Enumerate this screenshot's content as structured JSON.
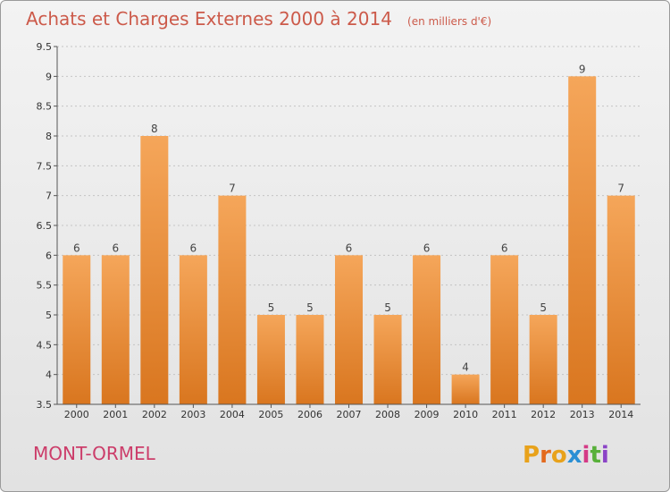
{
  "chart_data": {
    "type": "bar",
    "title": "Achats et Charges Externes 2000 à 2014",
    "unit_note": "(en milliers d'€)",
    "categories": [
      "2000",
      "2001",
      "2002",
      "2003",
      "2004",
      "2005",
      "2006",
      "2007",
      "2008",
      "2009",
      "2010",
      "2011",
      "2012",
      "2013",
      "2014"
    ],
    "values": [
      6,
      6,
      8,
      6,
      7,
      5,
      5,
      6,
      5,
      6,
      4,
      6,
      5,
      9,
      7
    ],
    "data_labels": [
      "6",
      "6",
      "8",
      "6",
      "7",
      "5",
      "5",
      "6",
      "5",
      "6",
      "4",
      "6",
      "5",
      "9",
      "7"
    ],
    "ylim": [
      3.5,
      9.5
    ],
    "yticks": [
      3.5,
      4,
      4.5,
      5,
      5.5,
      6,
      6.5,
      7,
      7.5,
      8,
      8.5,
      9,
      9.5
    ],
    "ytick_labels": [
      "3.5",
      "4",
      "4.5",
      "5",
      "5.5",
      "6",
      "6.5",
      "7",
      "7.5",
      "8",
      "8.5",
      "9",
      "9.5"
    ],
    "xlabel": "",
    "ylabel": "",
    "grid": true,
    "bar_color_top": "#f5a65a",
    "bar_color_bottom": "#d9761f"
  },
  "footer": {
    "city": "MONT-ORMEL",
    "logo_letters": [
      "P",
      "r",
      "o",
      "x",
      "i",
      "t",
      "i"
    ],
    "logo_colors": [
      "#e8a21b",
      "#e36a1e",
      "#e8a21b",
      "#2a8fd4",
      "#d43a86",
      "#58b03a",
      "#8b44c7"
    ]
  }
}
